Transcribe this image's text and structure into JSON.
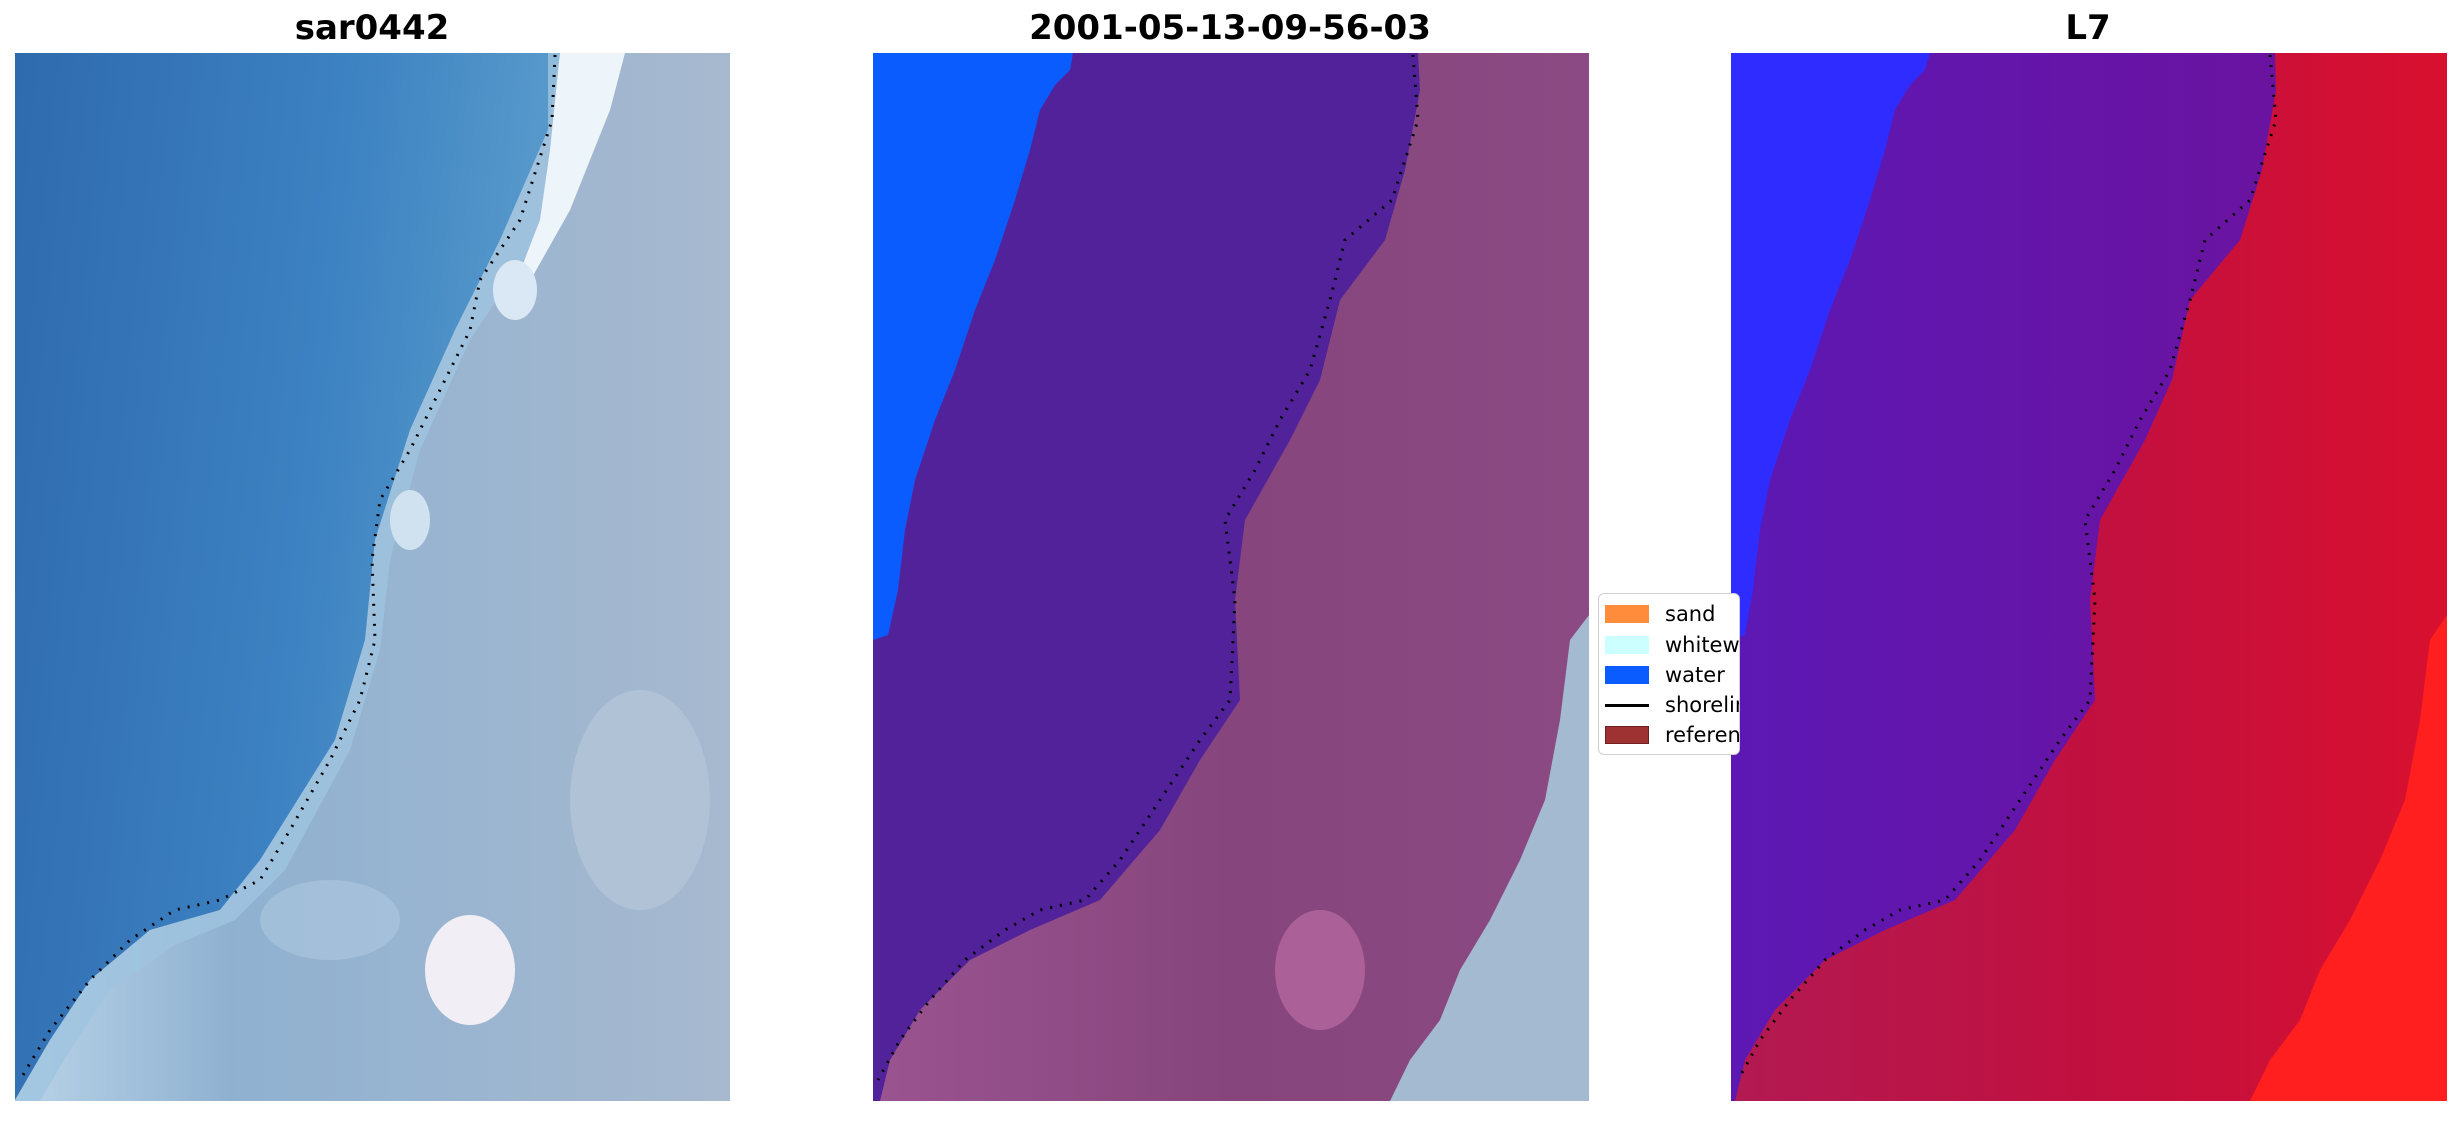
{
  "panels": [
    {
      "title": "sar0442"
    },
    {
      "title": "2001-05-13-09-56-03"
    },
    {
      "title": "L7"
    }
  ],
  "legend": [
    {
      "label": "sand",
      "color": "#ff8c3a",
      "kind": "patch"
    },
    {
      "label": "whitewater",
      "color": "#ccffff",
      "kind": "patch"
    },
    {
      "label": "water",
      "color": "#0a5cff",
      "kind": "patch"
    },
    {
      "label": "shoreline",
      "color": "#000000",
      "kind": "line"
    },
    {
      "label": "reference",
      "color": "#9e3232",
      "kind": "patch"
    }
  ],
  "colors": {
    "ocean_deep": "#2f6fb4",
    "ocean_light": "#4d8cc8",
    "surf": "#dbe8f3",
    "beach": "#8fb0cf",
    "class_water": "#0a5cff",
    "class_overlay_sea": "#52229a",
    "class_overlay_land": "#8a4a80",
    "ndwi_water": "#2f2cff",
    "ndwi_mid": "#6a14a6",
    "ndwi_land": "#c4103c",
    "ndwi_hot": "#ff1a1a"
  }
}
